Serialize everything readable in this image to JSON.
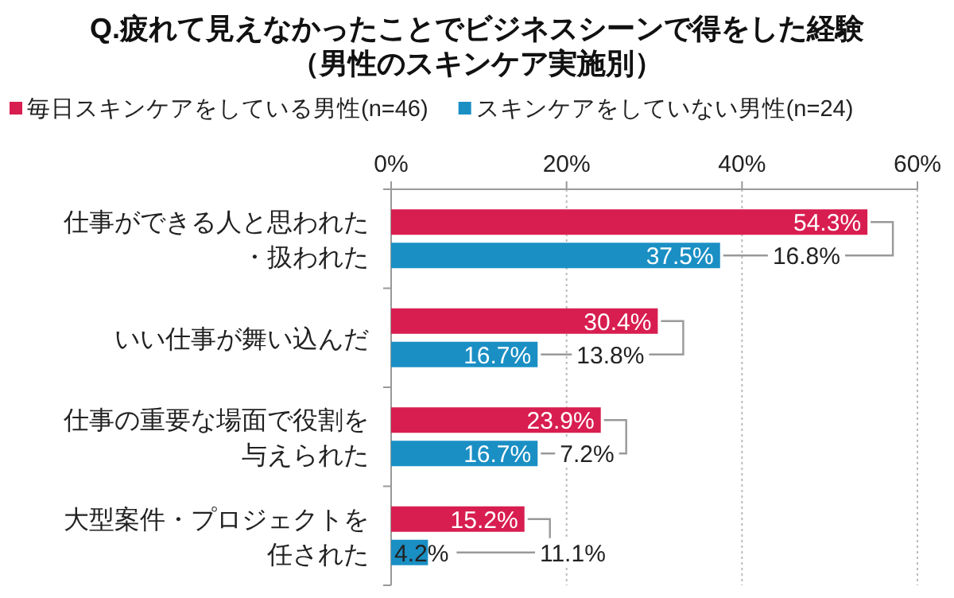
{
  "chart_data": {
    "type": "bar",
    "orientation": "horizontal",
    "title": "Q.疲れて見えなかったことでビジネスシーンで得をした経験（男性のスキンケア実施別）",
    "categories": [
      "仕事ができる人と思われた・扱われた",
      "いい仕事が舞い込んだ",
      "仕事の重要な場面で役割を与えられた",
      "大型案件・プロジェクトを任された"
    ],
    "series": [
      {
        "name": "毎日スキンケアをしている男性(n=46)",
        "color": "#d81e50",
        "values": [
          54.3,
          30.4,
          23.9,
          15.2
        ],
        "value_labels": [
          "54.3%",
          "30.4%",
          "23.9%",
          "15.2%"
        ]
      },
      {
        "name": "スキンケアをしていない男性(n=24)",
        "color": "#1a8fc4",
        "values": [
          37.5,
          16.7,
          16.7,
          4.2
        ],
        "value_labels": [
          "37.5%",
          "16.7%",
          "16.7%",
          "4.2%"
        ]
      }
    ],
    "xlim": [
      0,
      60
    ],
    "xticks": [
      {
        "value": 0,
        "label": "0%"
      },
      {
        "value": 20,
        "label": "20%"
      },
      {
        "value": 40,
        "label": "40%"
      },
      {
        "value": 60,
        "label": "60%"
      }
    ],
    "grid": "x",
    "legend": "top left",
    "annotations": [
      {
        "text": "16.8%",
        "y": "仕事ができる人と思われた・扱われた"
      },
      {
        "text": "13.8%",
        "y": "いい仕事が舞い込んだ"
      },
      {
        "text": "7.2%",
        "y": "仕事の重要な場面で役割を与えられた"
      },
      "11.1%"
    ]
  }
}
